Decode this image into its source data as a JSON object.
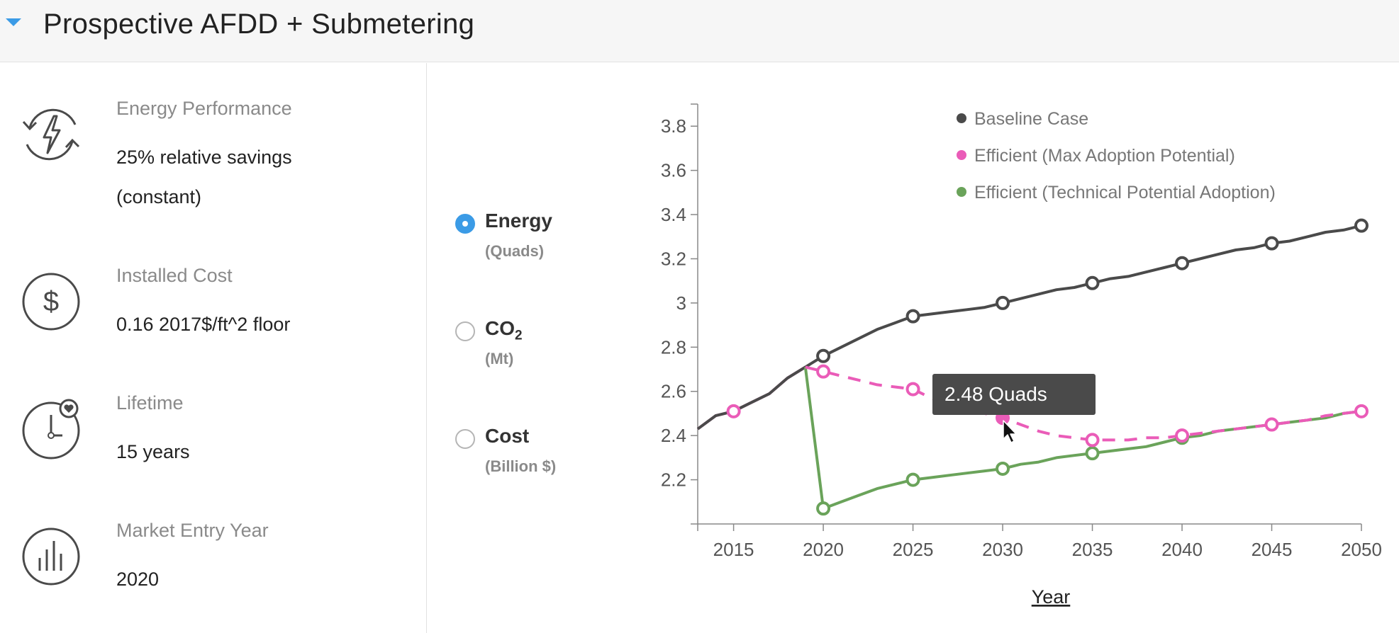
{
  "header": {
    "title": "Prospective AFDD + Submetering"
  },
  "attributes": [
    {
      "label": "Energy Performance",
      "value_lines": [
        "25% relative savings",
        "(constant)"
      ],
      "icon": "energy-cycle-icon"
    },
    {
      "label": "Installed Cost",
      "value_lines": [
        "0.16 2017$/ft^2 floor"
      ],
      "icon": "dollar-icon"
    },
    {
      "label": "Lifetime",
      "value_lines": [
        "15 years"
      ],
      "icon": "clock-heart-icon"
    },
    {
      "label": "Market Entry Year",
      "value_lines": [
        "2020"
      ],
      "icon": "bar-chart-icon"
    }
  ],
  "metrics": [
    {
      "name": "Energy",
      "sub": "",
      "unit": "(Quads)",
      "selected": true
    },
    {
      "name": "CO",
      "sub": "2",
      "unit": "(Mt)",
      "selected": false
    },
    {
      "name": "Cost",
      "sub": "",
      "unit": "(Billion $)",
      "selected": false
    }
  ],
  "tooltip": {
    "text": "2.48 Quads"
  },
  "chart_data": {
    "type": "line",
    "xlabel": "Year",
    "ylabel": "",
    "xlim": [
      2013,
      2050
    ],
    "ylim": [
      2.0,
      3.9
    ],
    "x_ticks": [
      2015,
      2020,
      2025,
      2030,
      2035,
      2040,
      2045,
      2050
    ],
    "y_ticks": [
      2.2,
      2.4,
      2.6,
      2.8,
      3.0,
      3.2,
      3.4,
      3.6,
      3.8
    ],
    "y_tick_labels": [
      "2.2",
      "2.4",
      "2.6",
      "2.8",
      "3",
      "3.2",
      "3.4",
      "3.6",
      "3.8"
    ],
    "legend_position": "top-right",
    "series": [
      {
        "name": "Baseline Case",
        "color": "#4a4a4a",
        "style": "solid",
        "x": [
          2013,
          2014,
          2015,
          2016,
          2017,
          2018,
          2019,
          2020,
          2021,
          2022,
          2023,
          2024,
          2025,
          2026,
          2027,
          2028,
          2029,
          2030,
          2031,
          2032,
          2033,
          2034,
          2035,
          2036,
          2037,
          2038,
          2039,
          2040,
          2041,
          2042,
          2043,
          2044,
          2045,
          2046,
          2047,
          2048,
          2049,
          2050
        ],
        "values": [
          2.43,
          2.49,
          2.51,
          2.55,
          2.59,
          2.66,
          2.71,
          2.76,
          2.8,
          2.84,
          2.88,
          2.91,
          2.94,
          2.95,
          2.96,
          2.97,
          2.98,
          3.0,
          3.02,
          3.04,
          3.06,
          3.07,
          3.09,
          3.11,
          3.12,
          3.14,
          3.16,
          3.18,
          3.2,
          3.22,
          3.24,
          3.25,
          3.27,
          3.28,
          3.3,
          3.32,
          3.33,
          3.35
        ],
        "markers_at": [
          2020,
          2025,
          2030,
          2035,
          2040,
          2045,
          2050
        ]
      },
      {
        "name": "Efficient (Max Adoption Potential)",
        "color": "#ea5cb8",
        "style": "mixed",
        "x": [
          2013,
          2014,
          2015,
          2016,
          2017,
          2018,
          2019,
          2020,
          2021,
          2022,
          2023,
          2024,
          2025,
          2026,
          2027,
          2028,
          2029,
          2030,
          2031,
          2032,
          2033,
          2034,
          2035,
          2036,
          2037,
          2038,
          2039,
          2040,
          2041,
          2042,
          2043,
          2044,
          2045,
          2046,
          2047,
          2048,
          2049,
          2050
        ],
        "values": [
          2.43,
          2.49,
          2.51,
          2.55,
          2.59,
          2.66,
          2.71,
          2.69,
          2.67,
          2.65,
          2.63,
          2.62,
          2.61,
          2.57,
          2.54,
          2.51,
          2.5,
          2.48,
          2.45,
          2.42,
          2.4,
          2.39,
          2.38,
          2.38,
          2.38,
          2.39,
          2.39,
          2.4,
          2.41,
          2.42,
          2.43,
          2.44,
          2.45,
          2.46,
          2.47,
          2.49,
          2.5,
          2.51
        ],
        "markers_at": [
          2015,
          2020,
          2025,
          2030,
          2035,
          2040,
          2045,
          2050
        ],
        "solid_until": 2019
      },
      {
        "name": "Efficient (Technical Potential Adoption)",
        "color": "#6aa35a",
        "style": "solid",
        "x": [
          2019,
          2020,
          2021,
          2022,
          2023,
          2024,
          2025,
          2026,
          2027,
          2028,
          2029,
          2030,
          2031,
          2032,
          2033,
          2034,
          2035,
          2036,
          2037,
          2038,
          2039,
          2040,
          2041,
          2042,
          2043,
          2044,
          2045,
          2046,
          2047,
          2048,
          2049,
          2050
        ],
        "values": [
          2.71,
          2.07,
          2.1,
          2.13,
          2.16,
          2.18,
          2.2,
          2.21,
          2.22,
          2.23,
          2.24,
          2.25,
          2.27,
          2.28,
          2.3,
          2.31,
          2.32,
          2.33,
          2.34,
          2.35,
          2.37,
          2.39,
          2.4,
          2.42,
          2.43,
          2.44,
          2.45,
          2.46,
          2.47,
          2.48,
          2.5,
          2.51
        ],
        "markers_at": [
          2020,
          2025,
          2030,
          2035,
          2040
        ]
      }
    ],
    "highlight": {
      "series": 1,
      "x": 2030
    }
  }
}
